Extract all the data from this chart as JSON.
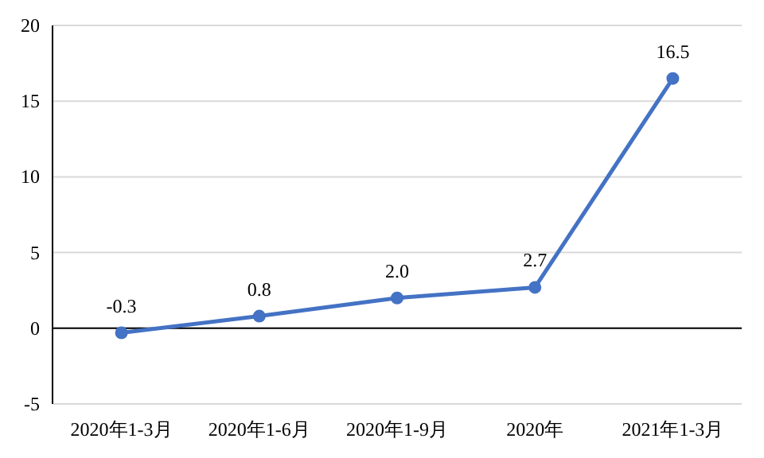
{
  "chart_data": {
    "type": "line",
    "categories": [
      "2020年1-3月",
      "2020年1-6月",
      "2020年1-9月",
      "2020年",
      "2021年1-3月"
    ],
    "series": [
      {
        "color": "#4472c4",
        "values": [
          -0.3,
          0.8,
          2.0,
          2.7,
          16.5
        ],
        "value_labels": [
          "-0.3",
          "0.8",
          "2.0",
          "2.7",
          "16.5"
        ]
      }
    ],
    "ylim": [
      -5,
      20
    ],
    "yticks": [
      -5,
      0,
      5,
      10,
      15,
      20
    ],
    "grid": "y",
    "marker": "circle",
    "line_style": "solid",
    "ref_lines": [
      {
        "axis": "y",
        "value": 0,
        "color": "#000000"
      }
    ]
  }
}
